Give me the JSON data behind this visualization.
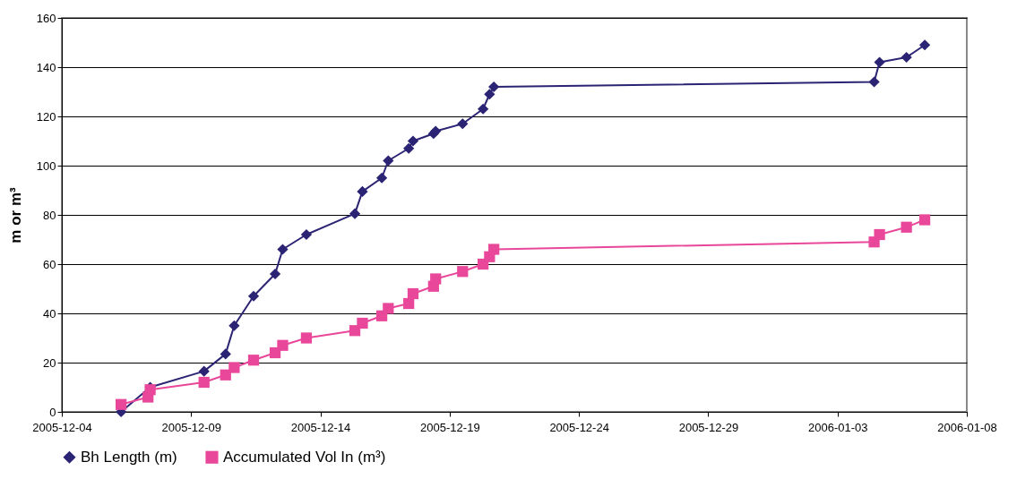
{
  "chart_data": {
    "type": "line",
    "ylabel": "m or m³",
    "xlim": [
      "2005-12-04",
      "2006-01-08"
    ],
    "xticks": [
      "2005-12-04",
      "2005-12-09",
      "2005-12-14",
      "2005-12-19",
      "2005-12-24",
      "2005-12-29",
      "2006-01-03",
      "2006-01-08"
    ],
    "ylim": [
      0,
      160
    ],
    "yticks": [
      0,
      20,
      40,
      60,
      80,
      100,
      120,
      140,
      160
    ],
    "grid": "y",
    "legend": "bottom",
    "line_style": "solid",
    "series": [
      {
        "name": "Bh Length (m)",
        "color": "#2b2373",
        "marker": "diamond",
        "x": [
          "2005-12-06T07:00",
          "2005-12-07T10:00",
          "2005-12-09T12:00",
          "2005-12-10T08:00",
          "2005-12-10T16:00",
          "2005-12-11T10:00",
          "2005-12-12T06:00",
          "2005-12-12T13:00",
          "2005-12-13T11:00",
          "2005-12-15T08:00",
          "2005-12-15T15:00",
          "2005-12-16T09:00",
          "2005-12-16T15:00",
          "2005-12-17T10:00",
          "2005-12-17T14:00",
          "2005-12-18T09:00",
          "2005-12-18T11:00",
          "2005-12-19T12:00",
          "2005-12-20T07:00",
          "2005-12-20T13:00",
          "2005-12-20T17:00",
          "2006-01-04T10:00",
          "2006-01-04T15:00",
          "2006-01-05T16:00",
          "2006-01-06T09:00"
        ],
        "values": [
          0,
          10,
          16.5,
          23.5,
          35,
          47,
          56,
          66,
          72,
          80.5,
          89.5,
          95,
          102,
          107,
          110,
          113,
          114,
          117,
          123,
          129,
          132,
          134,
          142,
          144,
          149
        ]
      },
      {
        "name": "Accumulated Vol In (m³)",
        "color": "#e8479a",
        "marker": "square",
        "x": [
          "2005-12-06T07:00",
          "2005-12-07T08:00",
          "2005-12-07T10:00",
          "2005-12-09T12:00",
          "2005-12-10T08:00",
          "2005-12-10T16:00",
          "2005-12-11T10:00",
          "2005-12-12T06:00",
          "2005-12-12T13:00",
          "2005-12-13T11:00",
          "2005-12-15T08:00",
          "2005-12-15T15:00",
          "2005-12-16T09:00",
          "2005-12-16T15:00",
          "2005-12-17T10:00",
          "2005-12-17T14:00",
          "2005-12-18T09:00",
          "2005-12-18T11:00",
          "2005-12-19T12:00",
          "2005-12-20T07:00",
          "2005-12-20T13:00",
          "2005-12-20T17:00",
          "2006-01-04T10:00",
          "2006-01-04T15:00",
          "2006-01-05T16:00",
          "2006-01-06T09:00"
        ],
        "values": [
          3,
          6,
          9,
          12,
          15,
          18,
          21,
          24,
          27,
          30,
          33,
          36,
          39,
          42,
          44,
          48,
          51,
          54,
          57,
          60,
          63,
          66,
          69,
          72,
          75,
          78
        ]
      }
    ]
  }
}
